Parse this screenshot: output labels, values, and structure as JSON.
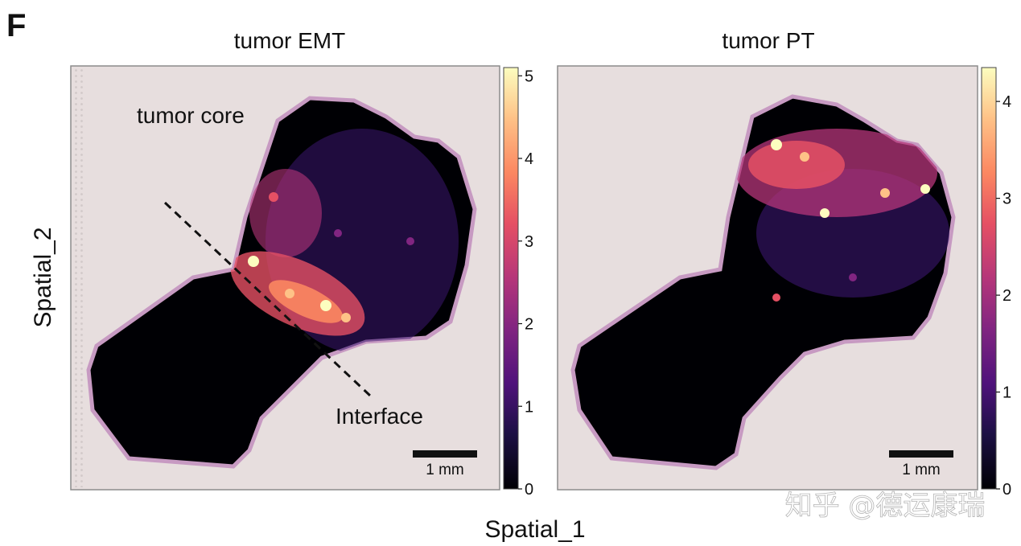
{
  "figure": {
    "panel_letter": "F",
    "x_axis_label": "Spatial_1",
    "y_axis_label": "Spatial_2",
    "watermark": "知乎 @德运康瑞"
  },
  "chart_data": [
    {
      "type": "heatmap",
      "title": "tumor EMT",
      "annotations": [
        "tumor core",
        "Interface"
      ],
      "scale_bar_label": "1 mm",
      "colorbar": {
        "min": 0,
        "max": 5.1,
        "ticks": [
          0,
          1,
          2,
          3,
          4,
          5
        ],
        "colormap": "magma"
      },
      "hotspot_region": "interface",
      "hotspot_peak_value": 5
    },
    {
      "type": "heatmap",
      "title": "tumor PT",
      "annotations": [],
      "scale_bar_label": "1 mm",
      "colorbar": {
        "min": 0,
        "max": 4.35,
        "ticks": [
          0,
          1,
          2,
          3,
          4
        ],
        "colormap": "magma"
      },
      "hotspot_region": "tumor core",
      "hotspot_peak_value": 4.3
    }
  ]
}
